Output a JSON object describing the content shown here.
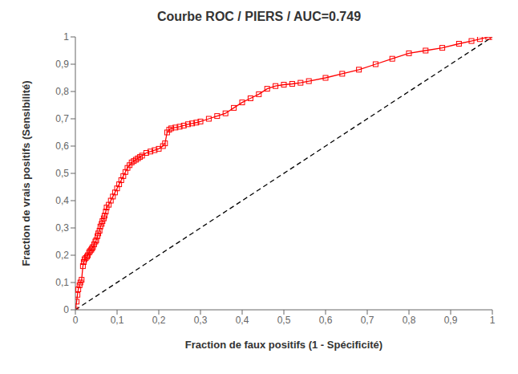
{
  "chart_data": {
    "type": "line",
    "title": "Courbe ROC / PIERS / AUC=0.749",
    "xlabel": "Fraction de faux positifs (1 - Spécificité)",
    "ylabel": "Fraction de vrais positifs (Sensibilité)",
    "series": [
      {
        "color": "#000000",
        "line_style": "dashed",
        "x": [
          0,
          1
        ],
        "values": [
          0,
          1
        ]
      },
      {
        "color": "#FF0000",
        "marker": "square",
        "x": [
          0.0,
          0.003,
          0.005,
          0.007,
          0.01,
          0.012,
          0.015,
          0.018,
          0.02,
          0.022,
          0.025,
          0.028,
          0.03,
          0.033,
          0.035,
          0.038,
          0.04,
          0.042,
          0.045,
          0.048,
          0.05,
          0.053,
          0.055,
          0.058,
          0.06,
          0.063,
          0.065,
          0.068,
          0.07,
          0.073,
          0.075,
          0.08,
          0.085,
          0.09,
          0.095,
          0.1,
          0.105,
          0.11,
          0.115,
          0.12,
          0.125,
          0.13,
          0.135,
          0.14,
          0.145,
          0.15,
          0.155,
          0.16,
          0.17,
          0.18,
          0.19,
          0.2,
          0.21,
          0.215,
          0.22,
          0.225,
          0.23,
          0.24,
          0.25,
          0.26,
          0.27,
          0.28,
          0.29,
          0.3,
          0.32,
          0.34,
          0.36,
          0.38,
          0.4,
          0.42,
          0.44,
          0.46,
          0.48,
          0.5,
          0.52,
          0.54,
          0.56,
          0.6,
          0.64,
          0.68,
          0.72,
          0.76,
          0.8,
          0.84,
          0.88,
          0.92,
          0.95,
          0.97,
          0.99,
          1.0
        ],
        "values": [
          0.0,
          0.03,
          0.055,
          0.075,
          0.09,
          0.1,
          0.11,
          0.16,
          0.175,
          0.185,
          0.19,
          0.195,
          0.2,
          0.21,
          0.215,
          0.22,
          0.225,
          0.23,
          0.24,
          0.25,
          0.255,
          0.27,
          0.28,
          0.29,
          0.305,
          0.315,
          0.325,
          0.335,
          0.345,
          0.36,
          0.375,
          0.385,
          0.4,
          0.415,
          0.43,
          0.445,
          0.46,
          0.475,
          0.49,
          0.505,
          0.52,
          0.53,
          0.54,
          0.545,
          0.55,
          0.555,
          0.56,
          0.565,
          0.575,
          0.58,
          0.585,
          0.59,
          0.6,
          0.61,
          0.65,
          0.66,
          0.665,
          0.668,
          0.671,
          0.675,
          0.68,
          0.683,
          0.686,
          0.69,
          0.7,
          0.71,
          0.72,
          0.74,
          0.76,
          0.775,
          0.79,
          0.81,
          0.82,
          0.825,
          0.828,
          0.832,
          0.838,
          0.85,
          0.865,
          0.88,
          0.9,
          0.92,
          0.94,
          0.95,
          0.96,
          0.975,
          0.985,
          0.992,
          1.0,
          1.0
        ]
      }
    ],
    "xlim": [
      0,
      1
    ],
    "ylim": [
      0,
      1
    ],
    "xticks": [
      0,
      {
        "value": 0.1,
        "label": "0,1"
      },
      {
        "value": 0.2,
        "label": "0,2"
      },
      {
        "value": 0.3,
        "label": "0,3"
      },
      {
        "value": 0.4,
        "label": "0,4"
      },
      {
        "value": 0.5,
        "label": "0,5"
      },
      {
        "value": 0.6,
        "label": "0,6"
      },
      {
        "value": 0.7,
        "label": "0,7"
      },
      {
        "value": 0.8,
        "label": "0,8"
      },
      {
        "value": 0.9,
        "label": "0,9"
      },
      1
    ],
    "yticks": [
      0,
      {
        "value": 0.1,
        "label": "0,1"
      },
      {
        "value": 0.2,
        "label": "0,2"
      },
      {
        "value": 0.3,
        "label": "0,3"
      },
      {
        "value": 0.4,
        "label": "0,4"
      },
      {
        "value": 0.5,
        "label": "0,5"
      },
      {
        "value": 0.6,
        "label": "0,6"
      },
      {
        "value": 0.7,
        "label": "0,7"
      },
      {
        "value": 0.8,
        "label": "0,8"
      },
      {
        "value": 0.9,
        "label": "0,9"
      },
      1
    ],
    "grid": false
  }
}
